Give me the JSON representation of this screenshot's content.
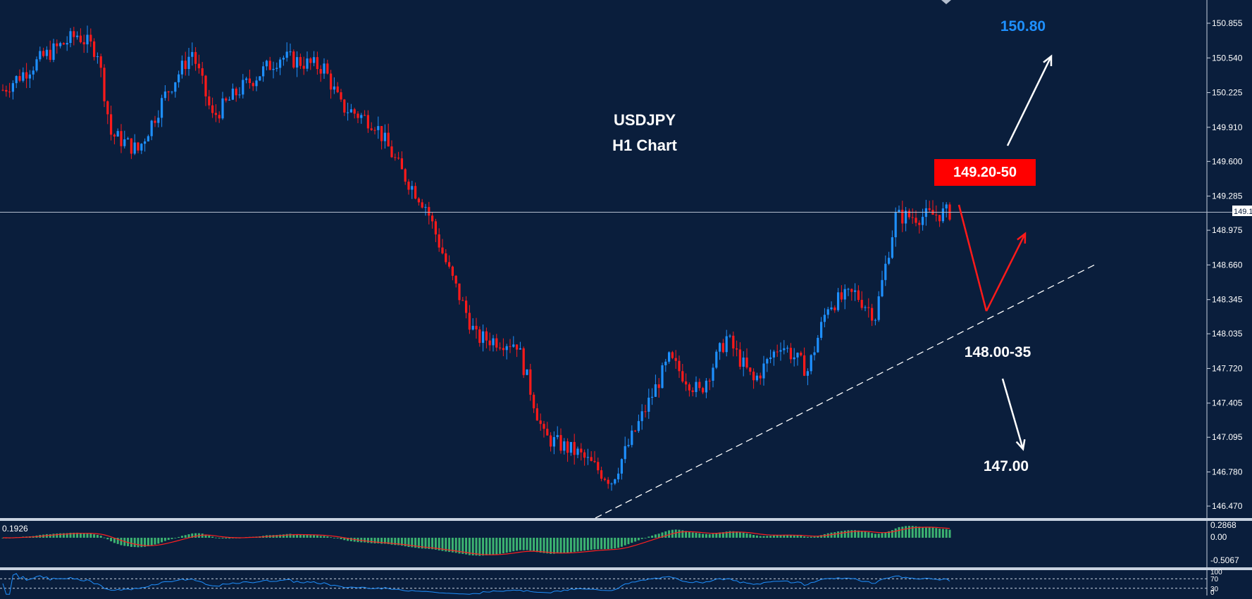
{
  "chart_data": {
    "type": "candlestick",
    "symbol": "USDJPY",
    "timeframe": "H1 Chart",
    "current_price": "149.139",
    "y_axis": {
      "ticks": [
        "150.855",
        "150.540",
        "150.225",
        "149.910",
        "149.600",
        "149.285",
        "148.975",
        "148.660",
        "148.345",
        "148.035",
        "147.720",
        "147.405",
        "147.095",
        "146.780",
        "146.470"
      ],
      "range": [
        146.35,
        150.96
      ]
    },
    "annotations": {
      "target_up": "150.80",
      "resistance_zone": "149.20-50",
      "support_zone": "148.00-35",
      "target_down": "147.00"
    },
    "price_path_anchors": [
      {
        "bar": 0,
        "price": 150.25
      },
      {
        "bar": 12,
        "price": 150.55
      },
      {
        "bar": 22,
        "price": 150.75
      },
      {
        "bar": 28,
        "price": 150.6
      },
      {
        "bar": 32,
        "price": 149.85
      },
      {
        "bar": 40,
        "price": 149.7
      },
      {
        "bar": 48,
        "price": 150.2
      },
      {
        "bar": 56,
        "price": 150.6
      },
      {
        "bar": 62,
        "price": 150.0
      },
      {
        "bar": 70,
        "price": 150.25
      },
      {
        "bar": 82,
        "price": 150.55
      },
      {
        "bar": 95,
        "price": 150.45
      },
      {
        "bar": 100,
        "price": 150.1
      },
      {
        "bar": 110,
        "price": 149.95
      },
      {
        "bar": 118,
        "price": 149.5
      },
      {
        "bar": 125,
        "price": 149.2
      },
      {
        "bar": 132,
        "price": 148.6
      },
      {
        "bar": 140,
        "price": 148.0
      },
      {
        "bar": 152,
        "price": 147.95
      },
      {
        "bar": 160,
        "price": 147.1
      },
      {
        "bar": 170,
        "price": 146.95
      },
      {
        "bar": 180,
        "price": 146.7
      },
      {
        "bar": 190,
        "price": 147.35
      },
      {
        "bar": 197,
        "price": 147.8
      },
      {
        "bar": 206,
        "price": 147.5
      },
      {
        "bar": 214,
        "price": 148.0
      },
      {
        "bar": 222,
        "price": 147.6
      },
      {
        "bar": 230,
        "price": 147.95
      },
      {
        "bar": 238,
        "price": 147.7
      },
      {
        "bar": 244,
        "price": 148.3
      },
      {
        "bar": 252,
        "price": 148.4
      },
      {
        "bar": 258,
        "price": 148.2
      },
      {
        "bar": 264,
        "price": 149.1
      },
      {
        "bar": 272,
        "price": 149.1
      },
      {
        "bar": 280,
        "price": 149.14
      }
    ],
    "macd_panel": {
      "label": "0.1926",
      "ticks": [
        "0.2868",
        "0.00",
        "-0.5067"
      ]
    },
    "rsi_panel": {
      "ticks": [
        "100",
        "70",
        "30",
        "0"
      ]
    },
    "colors": {
      "background": "#0a1e3c",
      "bull": "#1e90ff",
      "bear": "#ff1a1a",
      "macd_hist": "#3cb371",
      "macd_signal": "#ff2020",
      "rsi_line": "#1e90ff",
      "label_up": "#1e90ff",
      "zone_box": "#ff0000"
    }
  }
}
